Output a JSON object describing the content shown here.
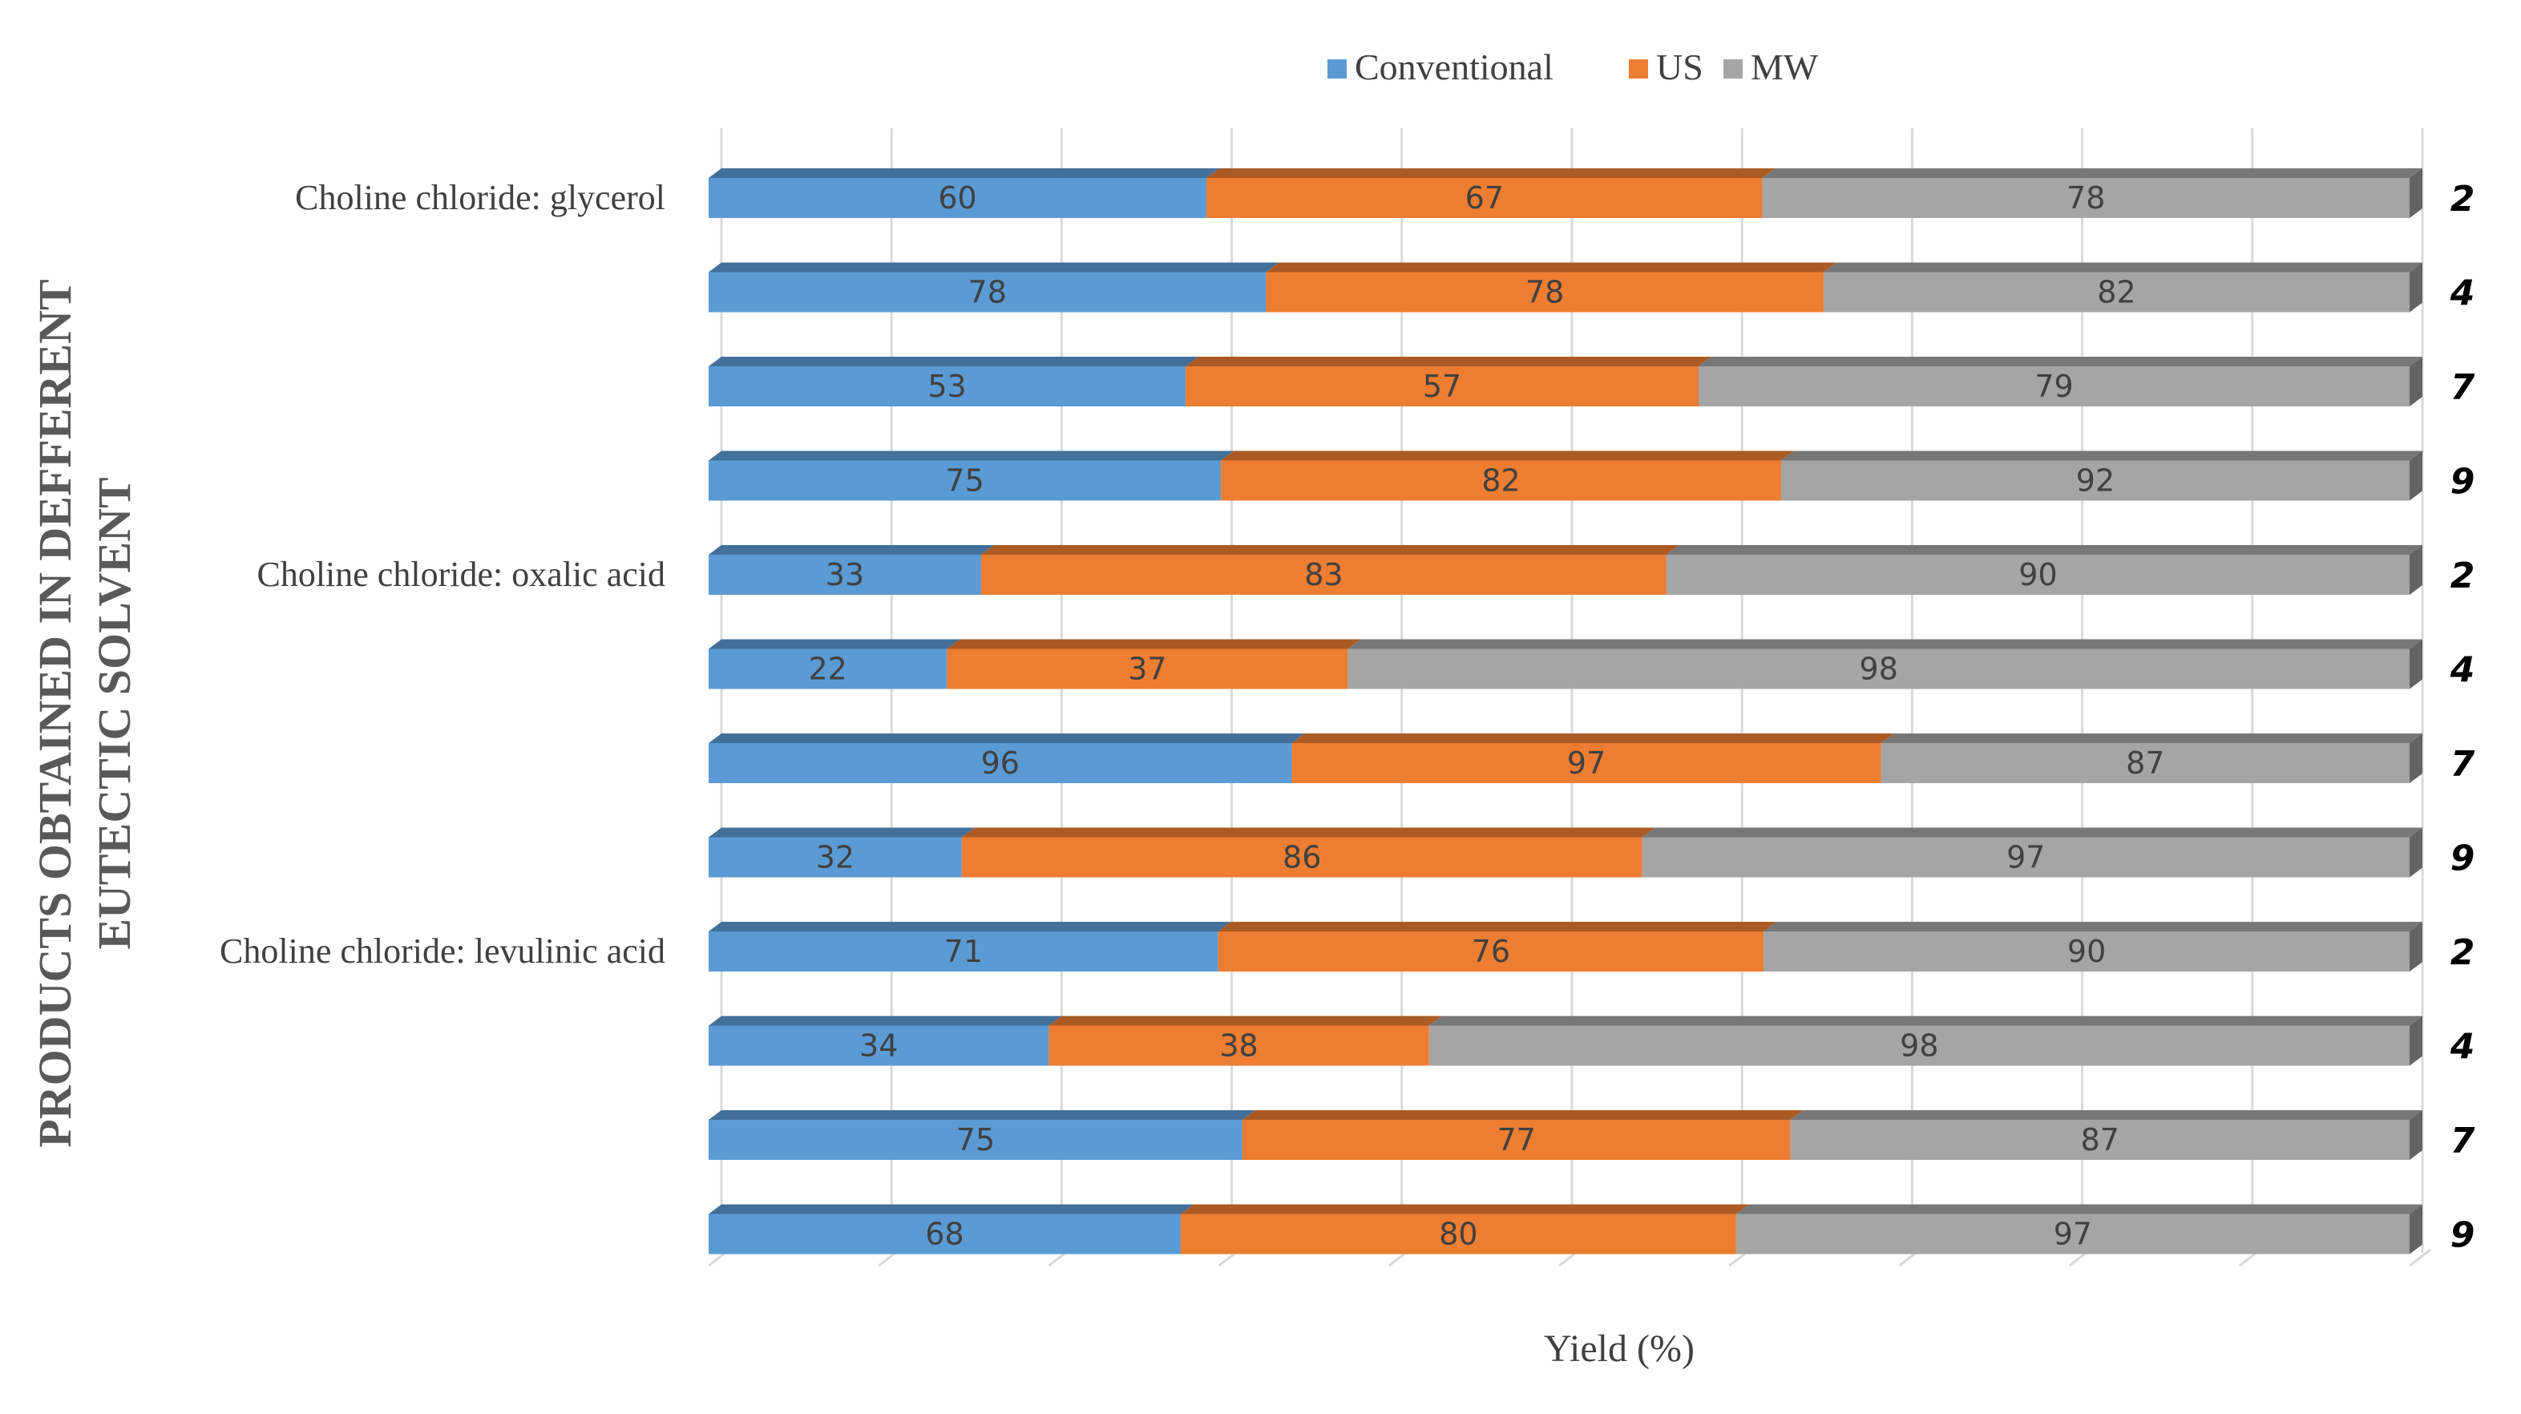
{
  "chart_data": {
    "type": "bar",
    "stacked": true,
    "percent_stacked": true,
    "orientation": "horizontal",
    "three_d": true,
    "title": "",
    "xlabel": "Yield (%)",
    "ylabel": "PRODUCTS OBTAINED IN DEFFERENT EUTECTIC SOLVENT",
    "legend_position": "top",
    "grid": true,
    "groups": [
      "Choline chloride: glycerol",
      "Choline chloride: oxalic acid",
      "Choline chloride: levulinic acid"
    ],
    "categories": [
      "2",
      "4",
      "7",
      "9",
      "2",
      "4",
      "7",
      "9",
      "2",
      "4",
      "7",
      "9"
    ],
    "series": [
      {
        "name": "Conventional",
        "color": "#5B9BD5",
        "values": [
          60,
          78,
          53,
          75,
          33,
          22,
          96,
          32,
          71,
          34,
          75,
          68
        ]
      },
      {
        "name": "US",
        "color": "#ED7D31",
        "values": [
          67,
          78,
          57,
          82,
          83,
          37,
          97,
          86,
          76,
          38,
          77,
          80
        ]
      },
      {
        "name": "MW",
        "color": "#A5A5A5",
        "values": [
          78,
          82,
          79,
          92,
          90,
          98,
          87,
          97,
          90,
          98,
          87,
          97
        ]
      }
    ]
  }
}
